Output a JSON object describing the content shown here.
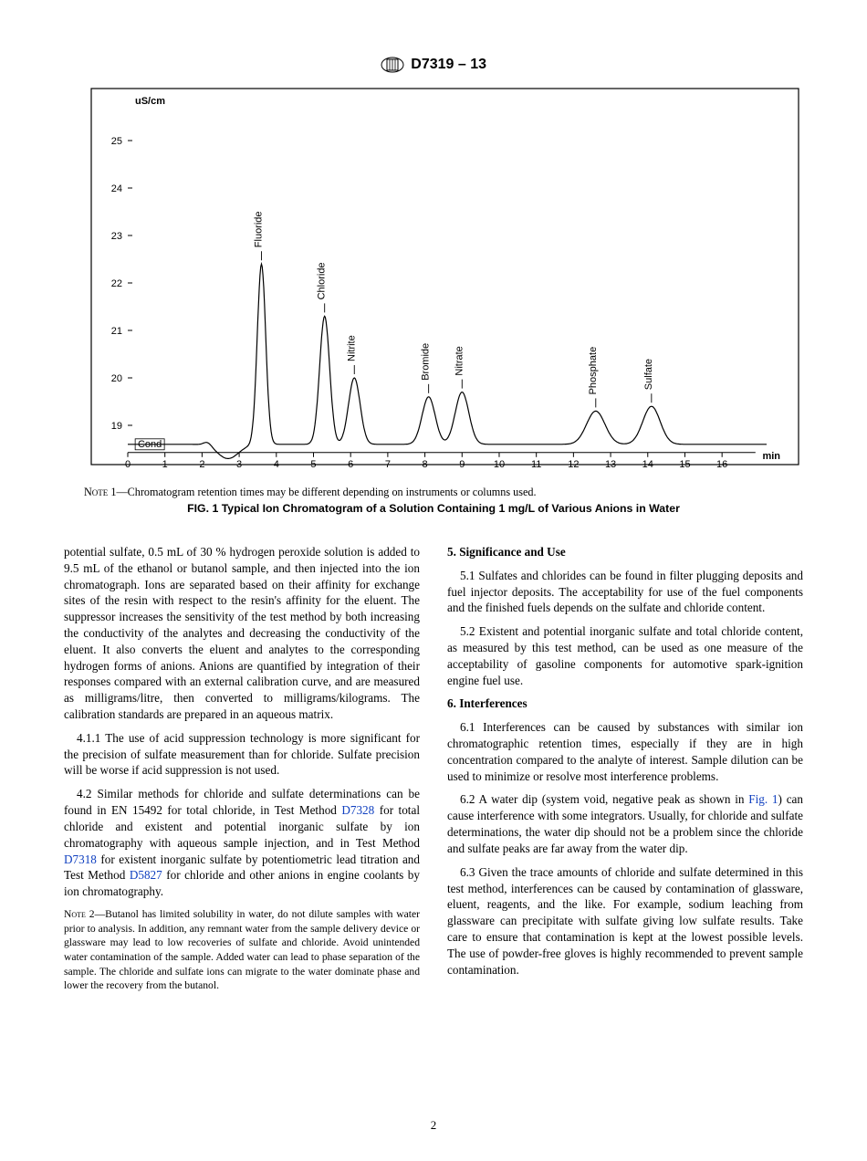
{
  "header": {
    "designation": "D7319 – 13"
  },
  "figure": {
    "y_label": "uS/cm",
    "x_label": "min",
    "cond_label": "Cond",
    "y_ticks": [
      19,
      20,
      21,
      22,
      23,
      24,
      25
    ],
    "x_ticks": [
      0,
      1,
      2,
      3,
      4,
      5,
      6,
      7,
      8,
      9,
      10,
      11,
      12,
      13,
      14,
      15,
      16
    ],
    "y_min": 18.5,
    "y_max": 26,
    "x_min": 0,
    "x_max": 17.2,
    "baseline": 18.6,
    "dip": {
      "x": 2.7,
      "depth": 0.3,
      "width": 0.4
    },
    "peaks": [
      {
        "label": "Fluoride",
        "x": 3.6,
        "height": 22.4,
        "width": 0.16
      },
      {
        "label": "Chloride",
        "x": 5.3,
        "height": 21.3,
        "width": 0.19
      },
      {
        "label": "Nitrite",
        "x": 6.1,
        "height": 20.0,
        "width": 0.22
      },
      {
        "label": "Bromide",
        "x": 8.1,
        "height": 19.6,
        "width": 0.25
      },
      {
        "label": "Nitrate",
        "x": 9.0,
        "height": 19.7,
        "width": 0.26
      },
      {
        "label": "Phosphate",
        "x": 12.6,
        "height": 19.3,
        "width": 0.35
      },
      {
        "label": "Sulfate",
        "x": 14.1,
        "height": 19.4,
        "width": 0.33
      }
    ],
    "stroke": "#000000",
    "stroke_width": 1.2,
    "note_label": "Note",
    "note": " 1—Chromatogram retention times may be different depending on instruments or columns used.",
    "caption": "FIG. 1 Typical Ion Chromatogram of a Solution Containing 1 mg/L of Various Anions in Water"
  },
  "body": {
    "p1": "potential sulfate, 0.5 mL of 30 % hydrogen peroxide solution is added to 9.5 mL of the ethanol or butanol sample, and then injected into the ion chromatograph. Ions are separated based on their affinity for exchange sites of the resin with respect to the resin's affinity for the eluent. The suppressor increases the sensitivity of the test method by both increasing the conductivity of the analytes and decreasing the conductivity of the eluent. It also converts the eluent and analytes to the corresponding hydrogen forms of anions. Anions are quantified by integration of their responses compared with an external calibration curve, and are measured as milligrams/litre, then converted to milligrams/kilograms. The calibration standards are prepared in an aqueous matrix.",
    "p2": "4.1.1 The use of acid suppression technology is more significant for the precision of sulfate measurement than for chloride. Sulfate precision will be worse if acid suppression is not used.",
    "p3a": "4.2 Similar methods for chloride and sulfate determinations can be found in EN 15492 for total chloride, in Test Method ",
    "link_d7328": "D7328",
    "p3b": " for total chloride and existent and potential inorganic sulfate by ion chromatography with aqueous sample injection, and in Test Method ",
    "link_d7318": "D7318",
    "p3c": " for existent inorganic sulfate by potentiometric lead titration and Test Method ",
    "link_d5827": "D5827",
    "p3d": " for chloride and other anions in engine coolants by ion chromatography.",
    "note2_label": "Note",
    "note2": " 2—Butanol has limited solubility in water, do not dilute samples with water prior to analysis. In addition, any remnant water from the sample delivery device or glassware may lead to low recoveries of sulfate and chloride. Avoid unintended water contamination of the sample. Added water can lead to phase separation of the sample. The chloride and sulfate ions can migrate to the water dominate phase and lower the recovery from the butanol.",
    "sec5": "5.  Significance and Use",
    "p51": "5.1 Sulfates and chlorides can be found in filter plugging deposits and fuel injector deposits. The acceptability for use of the fuel components and the finished fuels depends on the sulfate and chloride content.",
    "p52": "5.2 Existent and potential inorganic sulfate and total chloride content, as measured by this test method, can be used as one measure of the acceptability of gasoline components for automotive spark-ignition engine fuel use.",
    "sec6": "6.  Interferences",
    "p61": "6.1 Interferences can be caused by substances with similar ion chromatographic retention times, especially if they are in high concentration compared to the analyte of interest. Sample dilution can be used to minimize or resolve most interference problems.",
    "p62a": "6.2 A water dip (system void, negative peak as shown in ",
    "link_fig1": "Fig. 1",
    "p62b": ") can cause interference with some integrators. Usually, for chloride and sulfate determinations, the water dip should not be a problem since the chloride and sulfate peaks are far away from the water dip.",
    "p63": "6.3 Given the trace amounts of chloride and sulfate determined in this test method, interferences can be caused by contamination of glassware, eluent, reagents, and the like. For example, sodium leaching from glassware can precipitate with sulfate giving low sulfate results. Take care to ensure that contamination is kept at the lowest possible levels. The use of powder-free gloves is highly recommended to prevent sample contamination."
  },
  "page_number": "2"
}
